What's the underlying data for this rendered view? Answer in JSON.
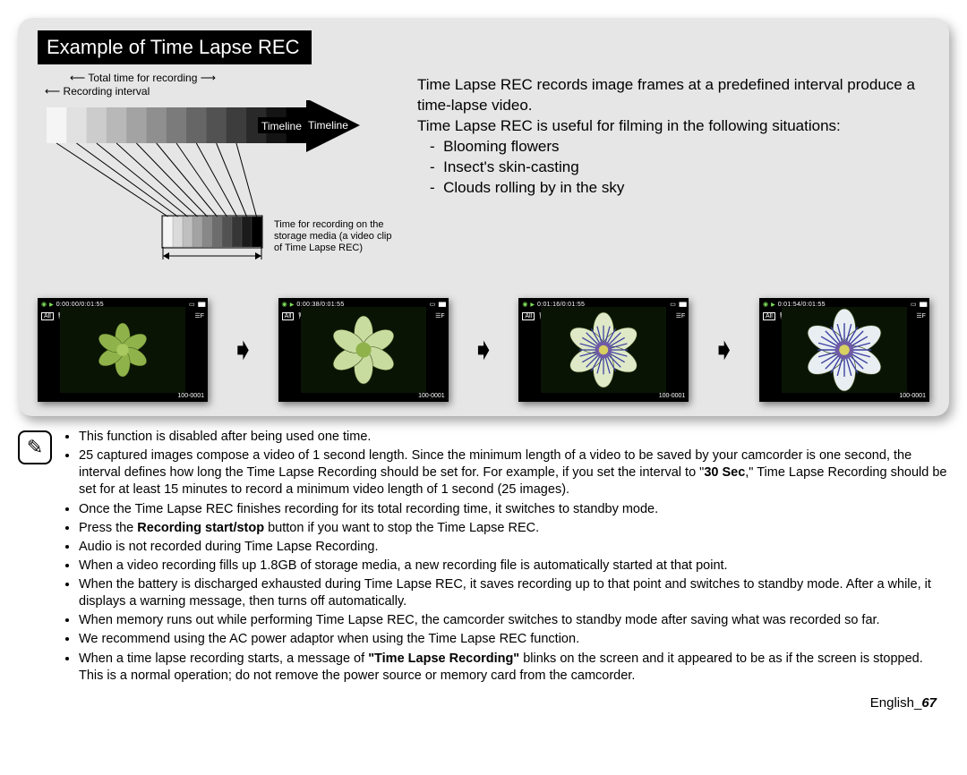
{
  "panel": {
    "title": "Example of Time Lapse REC",
    "diagram": {
      "label_total": "Total time for recording",
      "label_interval": "Recording interval",
      "label_timeline": "Timeline",
      "label_storage": "Time for recording on the storage media (a video clip of Time Lapse REC)",
      "gradient_bars": 13,
      "small_bars": 10,
      "arrow_color": "#000000",
      "bg_color": "#e6e6e6"
    },
    "description": {
      "p1": "Time Lapse REC records image frames at a predefined interval produce a time-lapse video.",
      "p2": "Time Lapse REC is useful for filming in the following situations:",
      "items": [
        "Blooming flowers",
        "Insect's skin-casting",
        "Clouds rolling by in the sky"
      ]
    },
    "thumbs": [
      {
        "time": "0:00:00/0:01:55",
        "id": "100-0001",
        "petal_fill": "#8fb34a",
        "petal_scale": 0.75,
        "center": "#a8c860",
        "accent": "none"
      },
      {
        "time": "0:00:38/0:01:55",
        "id": "100-0001",
        "petal_fill": "#c9dca0",
        "petal_scale": 0.95,
        "center": "#8fb34a",
        "accent": "none"
      },
      {
        "time": "0:01:16/0:01:55",
        "id": "100-0001",
        "petal_fill": "#dfe9c8",
        "petal_scale": 1.05,
        "center": "#6f5aa6",
        "accent": "#3b3fa0"
      },
      {
        "time": "0:01:54/0:01:55",
        "id": "100-0001",
        "petal_fill": "#e9eef2",
        "petal_scale": 1.15,
        "center": "#6f5aa6",
        "accent": "#3b3fa0"
      }
    ],
    "thumb_badges": {
      "left": "All",
      "checker": "▣",
      "batt": "▮▮▮▮",
      "play": "▶"
    }
  },
  "notes": {
    "bullets": [
      "This function is disabled after being used one time.",
      "25 captured images compose a video of 1 second length. Since the minimum length of a video to be saved by your camcorder is one second, the interval defines how long the Time Lapse Recording should be set for. For example, if you set the interval to \"<b>30 Sec</b>,\" Time Lapse Recording should be set for at least 15 minutes to record a minimum video length of 1 second (25 images).",
      "Once the Time Lapse REC finishes recording for its total recording time, it switches to standby mode.",
      "Press the <b>Recording start/stop</b> button if you want to stop the Time Lapse REC.",
      "Audio is not recorded during Time Lapse Recording.",
      "When a video recording fills up 1.8GB of storage media, a new recording file is automatically started at that point.",
      "When the battery is discharged exhausted during Time Lapse REC, it saves recording up to that point and switches to standby mode. After a while, it displays a warning message, then turns off automatically.",
      "When memory runs out while performing Time Lapse REC, the camcorder switches to standby mode after saving what was recorded so far.",
      "We recommend using the AC power adaptor when using the Time Lapse REC function.",
      "When a time lapse recording starts, a message of <b>\"Time Lapse Recording\"</b> blinks on the screen and it appeared to be as if the screen is stopped. This is a normal operation; do not remove the power source or memory card from the camcorder."
    ]
  },
  "footer": {
    "lang": "English",
    "page": "67"
  }
}
